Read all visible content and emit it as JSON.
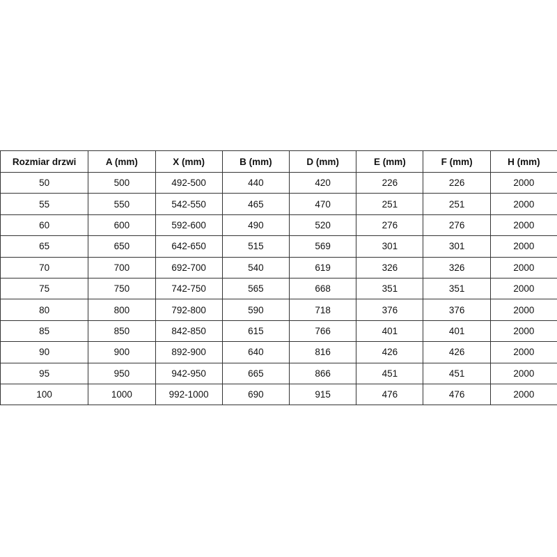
{
  "table": {
    "headers": [
      "Rozmiar drzwi",
      "A (mm)",
      "X (mm)",
      "B (mm)",
      "D (mm)",
      "E (mm)",
      "F (mm)",
      "H (mm)"
    ],
    "rows": [
      [
        "50",
        "500",
        "492-500",
        "440",
        "420",
        "226",
        "226",
        "2000"
      ],
      [
        "55",
        "550",
        "542-550",
        "465",
        "470",
        "251",
        "251",
        "2000"
      ],
      [
        "60",
        "600",
        "592-600",
        "490",
        "520",
        "276",
        "276",
        "2000"
      ],
      [
        "65",
        "650",
        "642-650",
        "515",
        "569",
        "301",
        "301",
        "2000"
      ],
      [
        "70",
        "700",
        "692-700",
        "540",
        "619",
        "326",
        "326",
        "2000"
      ],
      [
        "75",
        "750",
        "742-750",
        "565",
        "668",
        "351",
        "351",
        "2000"
      ],
      [
        "80",
        "800",
        "792-800",
        "590",
        "718",
        "376",
        "376",
        "2000"
      ],
      [
        "85",
        "850",
        "842-850",
        "615",
        "766",
        "401",
        "401",
        "2000"
      ],
      [
        "90",
        "900",
        "892-900",
        "640",
        "816",
        "426",
        "426",
        "2000"
      ],
      [
        "95",
        "950",
        "942-950",
        "665",
        "866",
        "451",
        "451",
        "2000"
      ],
      [
        "100",
        "1000",
        "992-1000",
        "690",
        "915",
        "476",
        "476",
        "2000"
      ]
    ]
  }
}
